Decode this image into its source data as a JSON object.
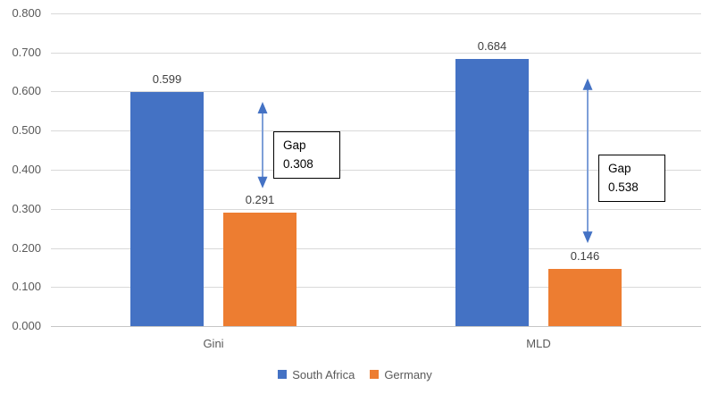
{
  "chart_data": {
    "type": "bar",
    "title": "",
    "xlabel": "",
    "ylabel": "",
    "categories": [
      "Gini",
      "MLD"
    ],
    "series": [
      {
        "name": "South Africa",
        "color": "#4472C4",
        "values": [
          0.599,
          0.684
        ],
        "labels": [
          "0.599",
          "0.684"
        ]
      },
      {
        "name": "Germany",
        "color": "#ED7D31",
        "values": [
          0.291,
          0.146
        ],
        "labels": [
          "0.291",
          "0.146"
        ]
      }
    ],
    "annotations": [
      {
        "category": "Gini",
        "lines": [
          "Gap",
          "0.308"
        ],
        "gap_value": 0.308
      },
      {
        "category": "MLD",
        "lines": [
          "Gap",
          "0.538"
        ],
        "gap_value": 0.538
      }
    ],
    "y_axis": {
      "min": 0.0,
      "max": 0.8,
      "step": 0.1,
      "ticks": [
        "0.800",
        "0.700",
        "0.600",
        "0.500",
        "0.400",
        "0.300",
        "0.200",
        "0.100",
        "0.000"
      ]
    },
    "grid": true,
    "legend_position": "bottom",
    "colors": {
      "grid": "#D9D9D9",
      "axis_line": "#C6C6C6",
      "axis_text": "#595959",
      "data_label_text": "#404040",
      "arrow_head": "#4472C4",
      "arrow_shaft": "#7E9FD8",
      "annotation_border": "#000000",
      "annotation_background": "#FFFFFF",
      "background": "#FFFFFF"
    }
  }
}
